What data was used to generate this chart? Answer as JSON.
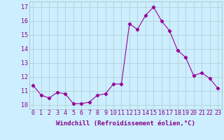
{
  "x": [
    0,
    1,
    2,
    3,
    4,
    5,
    6,
    7,
    8,
    9,
    10,
    11,
    12,
    13,
    14,
    15,
    16,
    17,
    18,
    19,
    20,
    21,
    22,
    23
  ],
  "y": [
    11.4,
    10.7,
    10.5,
    10.9,
    10.8,
    10.1,
    10.1,
    10.2,
    10.7,
    10.8,
    11.5,
    11.5,
    15.8,
    15.4,
    16.4,
    17.0,
    16.0,
    15.3,
    13.9,
    13.4,
    12.1,
    12.3,
    11.9,
    11.2
  ],
  "line_color": "#990099",
  "marker": "D",
  "markersize": 2.2,
  "bg_color": "#cceeff",
  "grid_color": "#aacccc",
  "xlabel": "Windchill (Refroidissement éolien,°C)",
  "ylabel_ticks": [
    10,
    11,
    12,
    13,
    14,
    15,
    16,
    17
  ],
  "xlim": [
    -0.5,
    23.5
  ],
  "ylim": [
    9.7,
    17.4
  ],
  "xlabel_fontsize": 6.5,
  "tick_fontsize": 6.0,
  "label_color": "#880088"
}
